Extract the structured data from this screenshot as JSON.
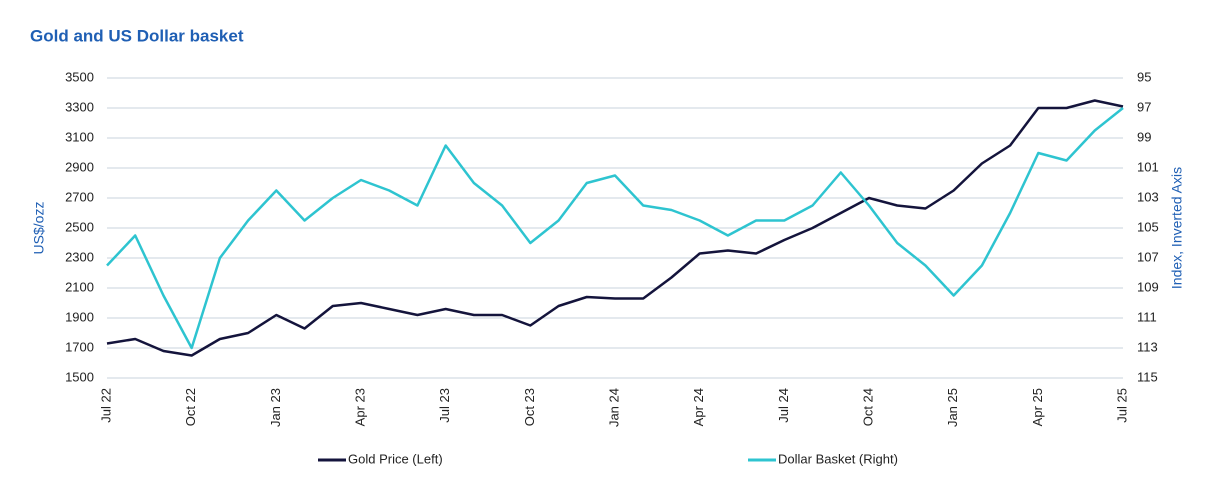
{
  "chart_data": {
    "type": "line",
    "title": "Gold and US Dollar basket",
    "y_label": "US$/ozz",
    "y2_label": "Index, Inverted Axis",
    "categories": [
      "Jul 22",
      null,
      null,
      "Oct 22",
      null,
      null,
      "Jan 23",
      null,
      null,
      "Apr 23",
      null,
      null,
      "Jul 23",
      null,
      null,
      "Oct 23",
      null,
      null,
      "Jan 24",
      null,
      null,
      "Apr 24",
      null,
      null,
      "Jul 24",
      null,
      null,
      "Oct 24",
      null,
      null,
      "Jan 25",
      null,
      null,
      "Apr 25",
      null,
      null,
      "Jul 25"
    ],
    "series": [
      {
        "name": "Gold Price (Left)",
        "color": "#14143c",
        "axis": "y",
        "values": [
          1730,
          1760,
          1680,
          1650,
          1760,
          1800,
          1920,
          1830,
          1980,
          2000,
          1960,
          1920,
          1960,
          1920,
          1920,
          1850,
          1980,
          2040,
          2030,
          2030,
          2170,
          2330,
          2350,
          2330,
          2420,
          2500,
          2600,
          2700,
          2650,
          2630,
          2750,
          2930,
          3050,
          3300,
          3300,
          3350,
          3310
        ]
      },
      {
        "name": "Dollar Basket (Right)",
        "color": "#2ec4d0",
        "axis": "y2",
        "values": [
          107.5,
          105.5,
          109.5,
          113,
          107,
          104.5,
          102.5,
          104.5,
          103,
          101.8,
          102.5,
          103.5,
          99.5,
          102,
          103.5,
          106,
          104.5,
          102,
          101.5,
          103.5,
          103.8,
          104.5,
          105.5,
          104.5,
          104.5,
          103.5,
          101.3,
          103.5,
          106,
          107.5,
          109.5,
          107.5,
          104,
          100,
          100.5,
          98.5,
          97
        ]
      }
    ],
    "ylim": [
      1500,
      3500
    ],
    "yticks": [
      1500,
      1700,
      1900,
      2100,
      2300,
      2500,
      2700,
      2900,
      3100,
      3300,
      3500
    ],
    "y2lim": [
      115,
      95
    ],
    "y2ticks": [
      115,
      113,
      111,
      109,
      107,
      105,
      103,
      101,
      99,
      97,
      95
    ],
    "grid": true
  }
}
